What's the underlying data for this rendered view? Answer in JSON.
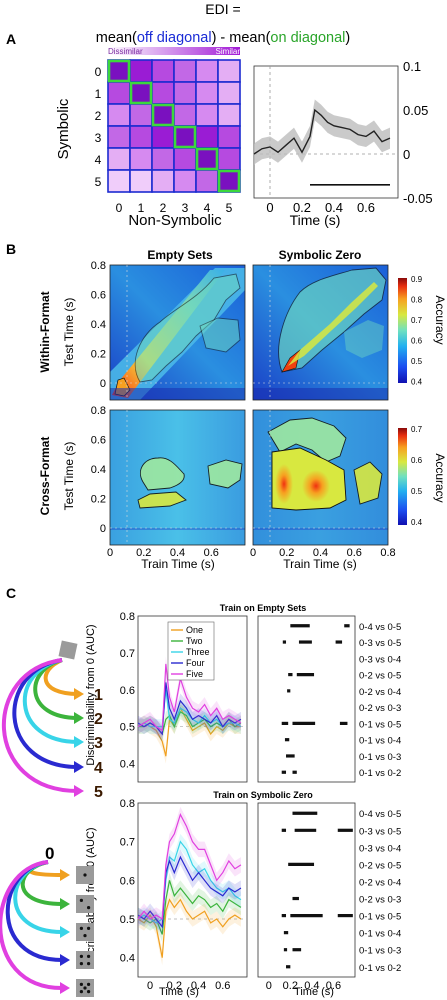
{
  "panelA": {
    "letter": "A",
    "edi_title": "EDI =",
    "formula": {
      "mean_open": "mean(",
      "off_diag": "off diagonal",
      "minus_mean": ") - mean(",
      "on_diag": "on diagonal",
      "close": ")"
    },
    "colors": {
      "off": "#1a2bd6",
      "on": "#2aa52a",
      "matrix_dark": "#8a12c9",
      "matrix_light": "#f2d6fb",
      "outline_blue": "#1c2bd0",
      "diag_green": "#3cd83c"
    },
    "colorbar_labels": {
      "left": "Dissimilar",
      "right": "Similar"
    },
    "matrix_ylabel": "Symbolic",
    "matrix_xlabel": "Non-Symbolic",
    "matrix_ticks": [
      "0",
      "1",
      "2",
      "3",
      "4",
      "5"
    ],
    "chart_data": {
      "type": "line",
      "xlabel": "Time (s)",
      "xticks": [
        "0",
        "0.2",
        "0.4",
        "0.6"
      ],
      "yticks": [
        "0.1",
        "0.05",
        "0",
        "-0.05"
      ],
      "xlim": [
        -0.1,
        0.8
      ],
      "ylim": [
        -0.05,
        0.1
      ],
      "x": [
        -0.1,
        -0.05,
        0,
        0.05,
        0.1,
        0.15,
        0.2,
        0.25,
        0.28,
        0.32,
        0.36,
        0.4,
        0.45,
        0.5,
        0.55,
        0.6,
        0.65,
        0.7,
        0.75
      ],
      "y": [
        0,
        0.006,
        0.008,
        0.002,
        0.01,
        0.018,
        0.002,
        0.02,
        0.05,
        0.044,
        0.036,
        0.032,
        0.03,
        0.028,
        0.022,
        0.02,
        0.026,
        0.014,
        0.018
      ],
      "significance_bar": [
        0.25,
        0.75
      ]
    }
  },
  "panelB": {
    "letter": "B",
    "col_titles": [
      "Empty Sets",
      "Symbolic Zero"
    ],
    "row_labels": [
      "Within-Format",
      "Cross-Format"
    ],
    "ylabel": "Test Time (s)",
    "xlabel": "Train Time (s)",
    "yticks": [
      "0.8",
      "0.6",
      "0.4",
      "0.2",
      "0"
    ],
    "xticks": [
      "0",
      "0.2",
      "0.4",
      "0.6",
      "0.8"
    ],
    "colorbar_label": "Accuracy",
    "cbar_top_ticks": [
      "0.9",
      "0.8",
      "0.7",
      "0.6",
      "0.5",
      "0.4"
    ],
    "cbar_bottom_ticks": [
      "0.7",
      "0.6",
      "0.5",
      "0.4"
    ]
  },
  "panelC": {
    "letter": "C",
    "top_title": "Train on Empty Sets",
    "bottom_title": "Train on Symbolic Zero",
    "ylabel": "Discriminability from 0 (AUC)",
    "xlabel": "Time (s)",
    "yticks_top": [
      "0.8",
      "0.7",
      "0.6",
      "0.5",
      "0.4"
    ],
    "yticks_bottom": [
      "0.8",
      "0.7",
      "0.6",
      "0.5",
      "0.4"
    ],
    "xticks": [
      "0",
      "0.2",
      "0.4",
      "0.6"
    ],
    "legend": [
      "One",
      "Two",
      "Three",
      "Four",
      "Five"
    ],
    "series_colors": [
      "#f0a020",
      "#3cb43c",
      "#38d4e8",
      "#2a2ad0",
      "#e040e0"
    ],
    "number_labels": [
      "1",
      "2",
      "3",
      "4",
      "5"
    ],
    "zero_label": "0",
    "comparisons": [
      "0-4 vs 0-5",
      "0-3 vs 0-5",
      "0-3 vs 0-4",
      "0-2 vs 0-5",
      "0-2 vs 0-4",
      "0-2 vs 0-3",
      "0-1 vs 0-5",
      "0-1 vs 0-4",
      "0-1 vs 0-3",
      "0-1 vs 0-2"
    ],
    "chart_data": [
      {
        "type": "line",
        "title": "Train on Empty Sets",
        "xlim": [
          -0.1,
          0.8
        ],
        "ylim": [
          0.35,
          0.8
        ],
        "x": [
          -0.1,
          -0.05,
          0,
          0.05,
          0.1,
          0.13,
          0.16,
          0.2,
          0.25,
          0.3,
          0.35,
          0.4,
          0.45,
          0.5,
          0.55,
          0.6,
          0.65,
          0.7,
          0.75
        ],
        "series": [
          {
            "name": "One",
            "values": [
              0.5,
              0.51,
              0.5,
              0.49,
              0.46,
              0.42,
              0.52,
              0.5,
              0.55,
              0.52,
              0.49,
              0.5,
              0.51,
              0.48,
              0.5,
              0.49,
              0.51,
              0.5,
              0.5
            ]
          },
          {
            "name": "Two",
            "values": [
              0.5,
              0.5,
              0.51,
              0.5,
              0.48,
              0.52,
              0.53,
              0.5,
              0.54,
              0.53,
              0.5,
              0.51,
              0.52,
              0.5,
              0.51,
              0.5,
              0.52,
              0.5,
              0.51
            ]
          },
          {
            "name": "Three",
            "values": [
              0.5,
              0.51,
              0.5,
              0.5,
              0.5,
              0.6,
              0.52,
              0.51,
              0.55,
              0.54,
              0.52,
              0.51,
              0.53,
              0.51,
              0.52,
              0.5,
              0.51,
              0.51,
              0.5
            ]
          },
          {
            "name": "Four",
            "values": [
              0.51,
              0.5,
              0.51,
              0.5,
              0.48,
              0.62,
              0.55,
              0.52,
              0.57,
              0.55,
              0.52,
              0.53,
              0.52,
              0.51,
              0.53,
              0.5,
              0.52,
              0.51,
              0.52
            ]
          },
          {
            "name": "Five",
            "values": [
              0.5,
              0.51,
              0.52,
              0.5,
              0.49,
              0.67,
              0.58,
              0.54,
              0.63,
              0.58,
              0.55,
              0.54,
              0.56,
              0.53,
              0.55,
              0.52,
              0.53,
              0.52,
              0.51
            ]
          }
        ],
        "significance": [
          {
            "comparison": "0-4 vs 0-5",
            "segments": [
              [
                0.2,
                0.38
              ],
              [
                0.7,
                0.75
              ]
            ]
          },
          {
            "comparison": "0-3 vs 0-5",
            "segments": [
              [
                0.13,
                0.16
              ],
              [
                0.28,
                0.4
              ],
              [
                0.62,
                0.68
              ]
            ]
          },
          {
            "comparison": "0-2 vs 0-5",
            "segments": [
              [
                0.18,
                0.22
              ],
              [
                0.26,
                0.42
              ]
            ]
          },
          {
            "comparison": "0-2 vs 0-4",
            "segments": [
              [
                0.17,
                0.2
              ]
            ]
          },
          {
            "comparison": "0-1 vs 0-5",
            "segments": [
              [
                0.12,
                0.18
              ],
              [
                0.22,
                0.43
              ],
              [
                0.66,
                0.73
              ]
            ]
          },
          {
            "comparison": "0-1 vs 0-4",
            "segments": [
              [
                0.15,
                0.19
              ]
            ]
          },
          {
            "comparison": "0-1 vs 0-3",
            "segments": [
              [
                0.16,
                0.24
              ]
            ]
          },
          {
            "comparison": "0-1 vs 0-2",
            "segments": [
              [
                0.12,
                0.16
              ],
              [
                0.22,
                0.26
              ]
            ]
          }
        ]
      },
      {
        "type": "line",
        "title": "Train on Symbolic Zero",
        "xlim": [
          -0.1,
          0.8
        ],
        "ylim": [
          0.35,
          0.8
        ],
        "x": [
          -0.1,
          -0.05,
          0,
          0.05,
          0.1,
          0.13,
          0.16,
          0.2,
          0.25,
          0.3,
          0.35,
          0.4,
          0.45,
          0.5,
          0.55,
          0.6,
          0.65,
          0.7,
          0.75
        ],
        "series": [
          {
            "name": "One",
            "values": [
              0.5,
              0.49,
              0.51,
              0.48,
              0.4,
              0.52,
              0.55,
              0.53,
              0.55,
              0.52,
              0.5,
              0.51,
              0.52,
              0.49,
              0.5,
              0.48,
              0.5,
              0.51,
              0.5
            ]
          },
          {
            "name": "Two",
            "values": [
              0.51,
              0.5,
              0.49,
              0.5,
              0.46,
              0.55,
              0.6,
              0.56,
              0.58,
              0.56,
              0.54,
              0.56,
              0.55,
              0.53,
              0.54,
              0.52,
              0.55,
              0.54,
              0.53
            ]
          },
          {
            "name": "Three",
            "values": [
              0.5,
              0.51,
              0.5,
              0.49,
              0.5,
              0.6,
              0.66,
              0.65,
              0.7,
              0.68,
              0.64,
              0.62,
              0.63,
              0.6,
              0.58,
              0.57,
              0.58,
              0.56,
              0.55
            ]
          },
          {
            "name": "Four",
            "values": [
              0.51,
              0.5,
              0.52,
              0.5,
              0.48,
              0.62,
              0.65,
              0.62,
              0.66,
              0.63,
              0.6,
              0.62,
              0.6,
              0.58,
              0.57,
              0.56,
              0.58,
              0.57,
              0.58
            ]
          },
          {
            "name": "Five",
            "values": [
              0.5,
              0.52,
              0.5,
              0.51,
              0.5,
              0.64,
              0.7,
              0.72,
              0.77,
              0.74,
              0.7,
              0.68,
              0.68,
              0.64,
              0.6,
              0.62,
              0.65,
              0.63,
              0.64
            ]
          }
        ],
        "significance": [
          {
            "comparison": "0-4 vs 0-5",
            "segments": [
              [
                0.22,
                0.45
              ]
            ]
          },
          {
            "comparison": "0-3 vs 0-5",
            "segments": [
              [
                0.12,
                0.16
              ],
              [
                0.24,
                0.44
              ],
              [
                0.64,
                0.78
              ]
            ]
          },
          {
            "comparison": "0-2 vs 0-5",
            "segments": [
              [
                0.18,
                0.42
              ]
            ]
          },
          {
            "comparison": "0-2 vs 0-3",
            "segments": [
              [
                0.22,
                0.28
              ]
            ]
          },
          {
            "comparison": "0-1 vs 0-5",
            "segments": [
              [
                0.12,
                0.16
              ],
              [
                0.2,
                0.5
              ],
              [
                0.64,
                0.78
              ]
            ]
          },
          {
            "comparison": "0-1 vs 0-4",
            "segments": [
              [
                0.14,
                0.18
              ]
            ]
          },
          {
            "comparison": "0-1 vs 0-3",
            "segments": [
              [
                0.14,
                0.17
              ],
              [
                0.22,
                0.3
              ]
            ]
          },
          {
            "comparison": "0-1 vs 0-2",
            "segments": [
              [
                0.16,
                0.2
              ]
            ]
          }
        ]
      }
    ]
  }
}
